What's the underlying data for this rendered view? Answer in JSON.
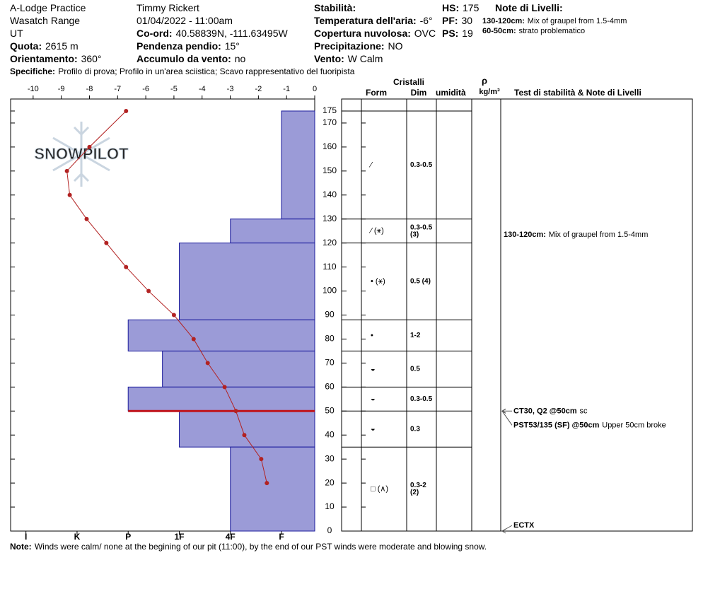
{
  "header": {
    "location": "A-Lodge Practice",
    "range": "Wasatch Range",
    "state": "UT",
    "elevation_label": "Quota:",
    "elevation": "2615 m",
    "aspect_label": "Orientamento:",
    "aspect": "360°",
    "observer": "Timmy  Rickert",
    "datetime": "01/04/2022 - 11:00am",
    "coord_label": "Co-ord:",
    "coord": "40.58839N, -111.63495W",
    "slope_label": "Pendenza pendio:",
    "slope": "15°",
    "wind_loading_label": "Accumulo da vento:",
    "wind_loading": "no",
    "stability_label": "Stabilità:",
    "air_temp_label": "Temperatura dell'aria:",
    "air_temp": "-6°",
    "sky_label": "Copertura nuvolosa:",
    "sky": "OVC",
    "precip_label": "Precipitazione:",
    "precip": "NO",
    "wind_label": "Vento:",
    "wind": "W Calm",
    "hs_label": "HS:",
    "hs": "175",
    "pf_label": "PF:",
    "pf": "30",
    "ps_label": "PS:",
    "ps": "19",
    "layer_notes_title": "Note di Livelli:",
    "layer_notes": [
      {
        "label": "130-120cm:",
        "text": "Mix of graupel from 1.5-4mm"
      },
      {
        "label": "60-50cm:",
        "text": "strato problematico"
      }
    ],
    "specs_label": "Specifiche:",
    "specs": "Profilo di prova;  Profilo in un'area sciistica;  Scavo rappresentativo del fuoripista"
  },
  "chart_data": {
    "type": "snow-profile",
    "watermark": "SNOWPILOT",
    "ylim": [
      0,
      180
    ],
    "yticks": [
      0,
      10,
      20,
      30,
      40,
      50,
      60,
      70,
      80,
      90,
      100,
      110,
      120,
      130,
      140,
      150,
      160,
      170,
      175
    ],
    "temperature": {
      "color": "#b22222",
      "xlim": [
        -10.8,
        0
      ],
      "xticks": [
        -10,
        -9,
        -8,
        -7,
        -6,
        -5,
        -4,
        -3,
        -2,
        -1,
        0
      ],
      "depth": [
        175,
        160,
        150,
        140,
        130,
        120,
        110,
        100,
        90,
        80,
        70,
        60,
        50,
        40,
        30,
        20
      ],
      "values": [
        -6.7,
        -8,
        -8.8,
        -8.7,
        -8.1,
        -7.4,
        -6.7,
        -5.9,
        -5,
        -4.3,
        -3.8,
        -3.2,
        -2.8,
        -2.5,
        -1.9,
        -1.7
      ]
    },
    "hardness": {
      "color": "#9b9bd7",
      "xlim": [
        6.3,
        0.35
      ],
      "xticks": [
        {
          "value": 6,
          "label": "I"
        },
        {
          "value": 5,
          "label": "K"
        },
        {
          "value": 4,
          "label": "P"
        },
        {
          "value": 3,
          "label": "1F"
        },
        {
          "value": 2,
          "label": "4F"
        },
        {
          "value": 1,
          "label": "F"
        }
      ],
      "layers": [
        {
          "top": 175,
          "bottom": 130,
          "value": 1,
          "form": "⁄",
          "dim": [
            "0.3-0.5"
          ]
        },
        {
          "top": 130,
          "bottom": 120,
          "value": 2,
          "form": "⁄ (⚹)",
          "dim": [
            "0.3-0.5",
            "(3)"
          ]
        },
        {
          "top": 120,
          "bottom": 88,
          "value": 3,
          "form": "• (⚹)",
          "dim": [
            "0.5 (4)"
          ]
        },
        {
          "top": 88,
          "bottom": 75,
          "value": 4,
          "form": "•",
          "dim": [
            "1-2"
          ]
        },
        {
          "top": 75,
          "bottom": 60,
          "value": 3.33,
          "form": "◒",
          "dim": [
            "0.5"
          ]
        },
        {
          "top": 60,
          "bottom": 50,
          "value": 4,
          "form": "◒",
          "dim": [
            "0.3-0.5"
          ]
        },
        {
          "top": 50,
          "bottom": 35,
          "value": 3,
          "form": "◒",
          "dim": [
            "0.3"
          ]
        },
        {
          "top": 35,
          "bottom": 0,
          "value": 2,
          "form": "□ (∧)",
          "dim": [
            "0.3-2",
            "(2)"
          ]
        }
      ]
    },
    "problem_layer_depth": 50,
    "columns": {
      "crystals": "Cristalli",
      "form": "Form",
      "dim": "Dim",
      "moisture": "umidità",
      "rho": "ρ",
      "density_unit": "kg/m³",
      "tests": "Test di stabilità & Note di Livelli"
    },
    "layer_note": {
      "label": "130-120cm:",
      "text": "Mix of graupel from 1.5-4mm"
    },
    "tests": [
      {
        "depth": 50,
        "result": "CT30, Q2 @50cm",
        "comment": "sc"
      },
      {
        "depth": 50,
        "result": "PST53/135 (SF) @50cm",
        "comment": "Upper 50cm broke"
      },
      {
        "depth": 0,
        "result": "ECTX"
      }
    ]
  },
  "footer": {
    "label": "Note:",
    "text": "Winds were calm/ none at the begining of our pit (11:00), by the end of our PST winds were moderate and blowing snow."
  }
}
